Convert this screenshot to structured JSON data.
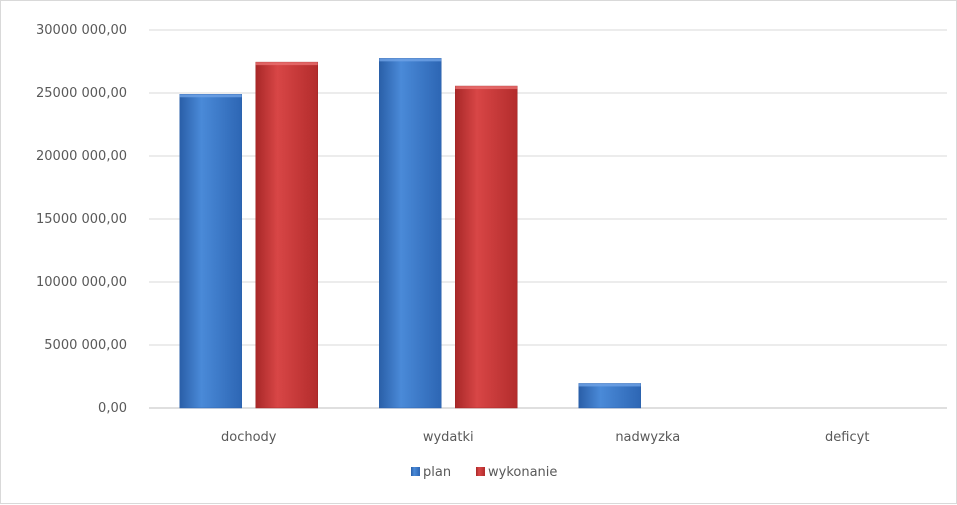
{
  "chart_data": {
    "type": "bar",
    "categories": [
      "dochody",
      "wydatki",
      "nadwyzka",
      "deficyt"
    ],
    "series": [
      {
        "name": "plan",
        "values": [
          24900000,
          27750000,
          1950000,
          0
        ],
        "color": "#3a78c9"
      },
      {
        "name": "wykonanie",
        "values": [
          27450000,
          25550000,
          0,
          0
        ],
        "color": "#cc3333"
      }
    ],
    "ylim": [
      0,
      30000000
    ],
    "yticks": [
      0,
      5000000,
      10000000,
      15000000,
      20000000,
      25000000,
      30000000
    ],
    "ytick_labels": [
      "0,00",
      "5000 000,00",
      "10000 000,00",
      "15000 000,00",
      "20000 000,00",
      "25000 000,00",
      "30000 000,00"
    ],
    "grid": true,
    "legend": "bottom"
  }
}
